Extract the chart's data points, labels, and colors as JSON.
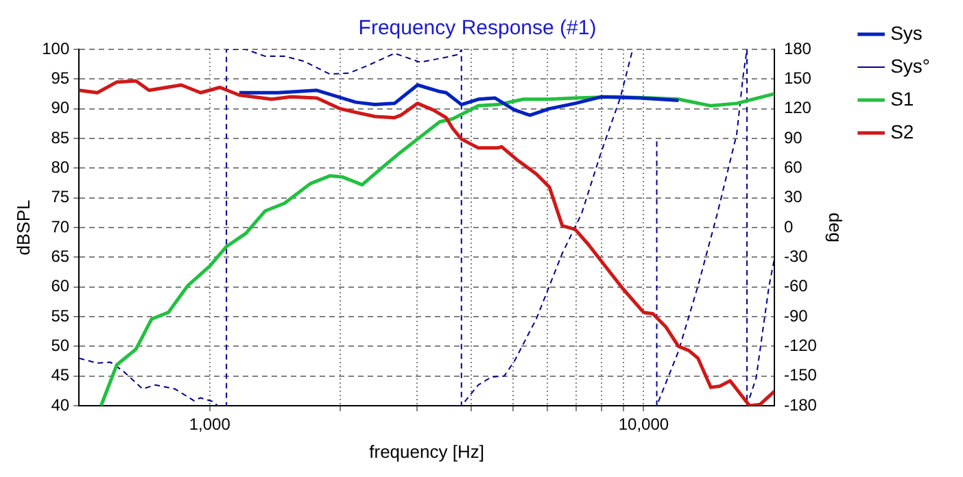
{
  "chart_data": {
    "type": "line",
    "title": "Frequency Response (#1)",
    "xlabel": "frequency [Hz]",
    "ylabel": "dBSPL",
    "y2label": "deg",
    "log": "x",
    "grid": true,
    "legend": "top right",
    "marker": "none",
    "xlim": [
      500,
      20000
    ],
    "xticks": [
      {
        "value": 1000,
        "label": "1,000"
      },
      {
        "value": 2000,
        "label": null
      },
      {
        "value": 3000,
        "label": null
      },
      {
        "value": 4000,
        "label": null
      },
      {
        "value": 5000,
        "label": null
      },
      {
        "value": 6000,
        "label": null
      },
      {
        "value": 7000,
        "label": null
      },
      {
        "value": 8000,
        "label": null
      },
      {
        "value": 9000,
        "label": null
      },
      {
        "value": 10000,
        "label": "10,000"
      }
    ],
    "ylim": [
      40,
      100
    ],
    "yticks": [
      40,
      45,
      50,
      55,
      60,
      65,
      70,
      75,
      80,
      85,
      90,
      95,
      100
    ],
    "y2lim": [
      -180,
      180
    ],
    "y2ticks": [
      -180,
      -150,
      -120,
      -90,
      -60,
      -30,
      0,
      30,
      60,
      90,
      120,
      150,
      180
    ],
    "series": [
      {
        "name": "Sys",
        "color": "#0022c0",
        "line_style": "solid",
        "x": [
          1170,
          1438,
          1766,
          2170,
          2404,
          2666,
          3013,
          3388,
          3507,
          3803,
          4159,
          4547,
          5036,
          5470,
          6065,
          6950,
          7980,
          9795,
          12030
        ],
        "values": [
          92.7,
          92.7,
          93.1,
          91.1,
          90.7,
          90.9,
          94.0,
          92.9,
          92.7,
          90.7,
          91.6,
          91.8,
          89.8,
          88.9,
          90.0,
          90.9,
          92.0,
          91.8,
          91.4
        ]
      },
      {
        "name": "Sys°",
        "color": "#000090",
        "axis": "y2",
        "line_style": "dashed",
        "x": [
          500,
          551,
          590,
          632,
          700,
          750,
          831,
          921,
          953,
          1021,
          1042,
          1093,
          1093,
          1211,
          1343,
          1488,
          1649,
          1892,
          2096,
          2323,
          2666,
          3055,
          3507,
          3753,
          3803,
          3803,
          4159,
          4457,
          4772,
          5036,
          5662,
          6494,
          7194,
          7980,
          8833,
          9397,
          10000,
          10720,
          10720,
          12030,
          13340,
          14780,
          16380,
          16950,
          17300,
          17300,
          18160,
          19450,
          20000
        ],
        "values": [
          -132,
          -137,
          -136,
          -145,
          -163,
          -159,
          -163,
          -175,
          -172,
          -176,
          -180,
          -180,
          180,
          180,
          173,
          173,
          168,
          155,
          156,
          164,
          176,
          167,
          172,
          175,
          180,
          -180,
          -159,
          -151,
          -150,
          -135,
          -92,
          -26,
          14,
          76,
          131,
          177,
          null,
          87,
          -180,
          -125,
          -59,
          14,
          94,
          153,
          180,
          -180,
          -152,
          -59,
          -32
        ]
      },
      {
        "name": "S1",
        "color": "#22c040",
        "line_style": "solid",
        "x": [
          562,
          611,
          676,
          735,
          803,
          890,
          1000,
          1093,
          1211,
          1343,
          1488,
          1706,
          1892,
          2026,
          2245,
          2488,
          2756,
          3013,
          3388,
          3629,
          4159,
          4611,
          5285,
          6065,
          6950,
          8544,
          10500,
          12030,
          14280,
          16380,
          20000
        ],
        "values": [
          40,
          46.9,
          49.5,
          54.6,
          55.7,
          60.2,
          63.5,
          66.8,
          69,
          72.8,
          74.1,
          77.4,
          78.7,
          78.5,
          77.2,
          80.0,
          82.7,
          84.9,
          87.8,
          88.3,
          90.5,
          90.7,
          91.6,
          91.6,
          91.8,
          92.0,
          91.8,
          91.6,
          90.5,
          90.9,
          92.5
        ]
      },
      {
        "name": "S2",
        "color": "#d01818",
        "line_style": "solid",
        "x": [
          500,
          551,
          611,
          676,
          725,
          860,
          953,
          1056,
          1170,
          1390,
          1540,
          1766,
          2000,
          2170,
          2404,
          2666,
          2756,
          3013,
          3273,
          3507,
          3629,
          3803,
          4159,
          4611,
          4706,
          5108,
          5662,
          6065,
          6494,
          6950,
          7447,
          8955,
          10000,
          10500,
          11240,
          12030,
          12700,
          13340,
          14280,
          14990,
          15820,
          17540,
          18530,
          20000
        ],
        "values": [
          93.1,
          92.7,
          94.5,
          94.7,
          93.1,
          94.0,
          92.7,
          93.6,
          92.3,
          91.6,
          92.0,
          91.8,
          90.0,
          89.4,
          88.7,
          88.5,
          88.9,
          90.9,
          89.8,
          88.5,
          86.7,
          84.9,
          83.4,
          83.4,
          83.6,
          81.4,
          79.0,
          76.8,
          70.3,
          69.7,
          67.2,
          59.7,
          55.7,
          55.5,
          53.3,
          50.0,
          49.3,
          48.0,
          43.1,
          43.3,
          44.2,
          40.0,
          40.2,
          42.4
        ]
      }
    ]
  }
}
